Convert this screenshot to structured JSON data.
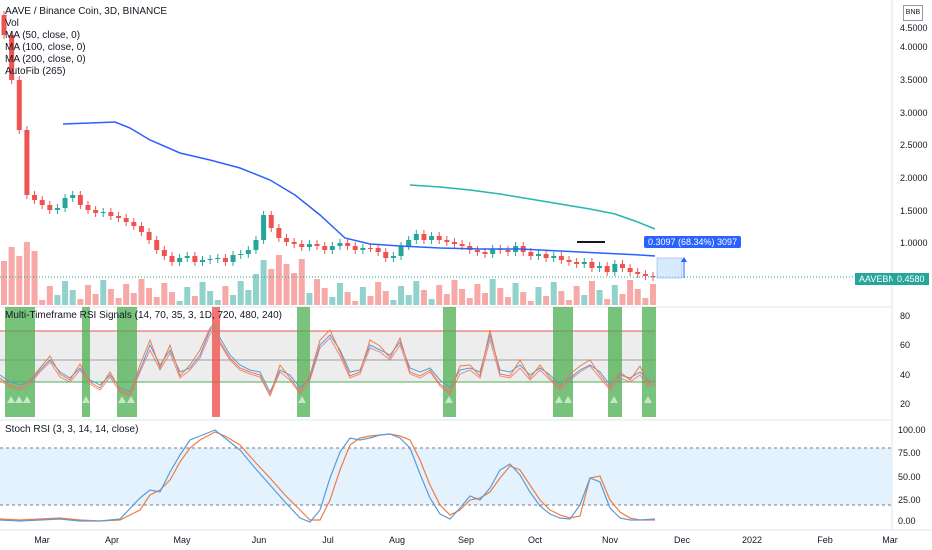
{
  "legend": {
    "symbol": "AAVE / Binance Coin, 3D, BINANCE",
    "items": [
      "Vol",
      "MA (50, close, 0)",
      "MA (100, close, 0)",
      "MA (200, close, 0)",
      "AutoFib (265)"
    ]
  },
  "currency_label": "BNB",
  "price_axis": [
    "4.5000",
    "4.0000",
    "3.5000",
    "3.0000",
    "2.5000",
    "2.0000",
    "1.5000",
    "1.0000"
  ],
  "price_badge": {
    "symbol": "AAVEBNB",
    "value": "0.4580",
    "color": "#26a69a"
  },
  "measure_label": "0.3097 (68.34%) 3097",
  "rsi_title": "Multi-Timeframe RSI Signals (14, 70, 35, 3, 1D, 720, 480, 240)",
  "rsi_axis": [
    "80",
    "60",
    "40",
    "20"
  ],
  "stoch_title": "Stoch RSI (3, 3, 14, 14, close)",
  "stoch_axis": [
    "100.00",
    "75.00",
    "50.00",
    "25.00",
    "0.00"
  ],
  "time_axis": [
    "Mar",
    "Apr",
    "May",
    "Jun",
    "Jul",
    "Aug",
    "Sep",
    "Oct",
    "Nov",
    "Dec",
    "2022",
    "Feb",
    "Mar"
  ],
  "colors": {
    "up": "#26a69a",
    "down": "#ef5350",
    "ma_blue": "#2962ff",
    "ma_teal": "#26b5b0",
    "rsi_band": "#e9e9ea",
    "stoch_band": "#e3f2fd",
    "signal_green": "#4caf50"
  }
}
